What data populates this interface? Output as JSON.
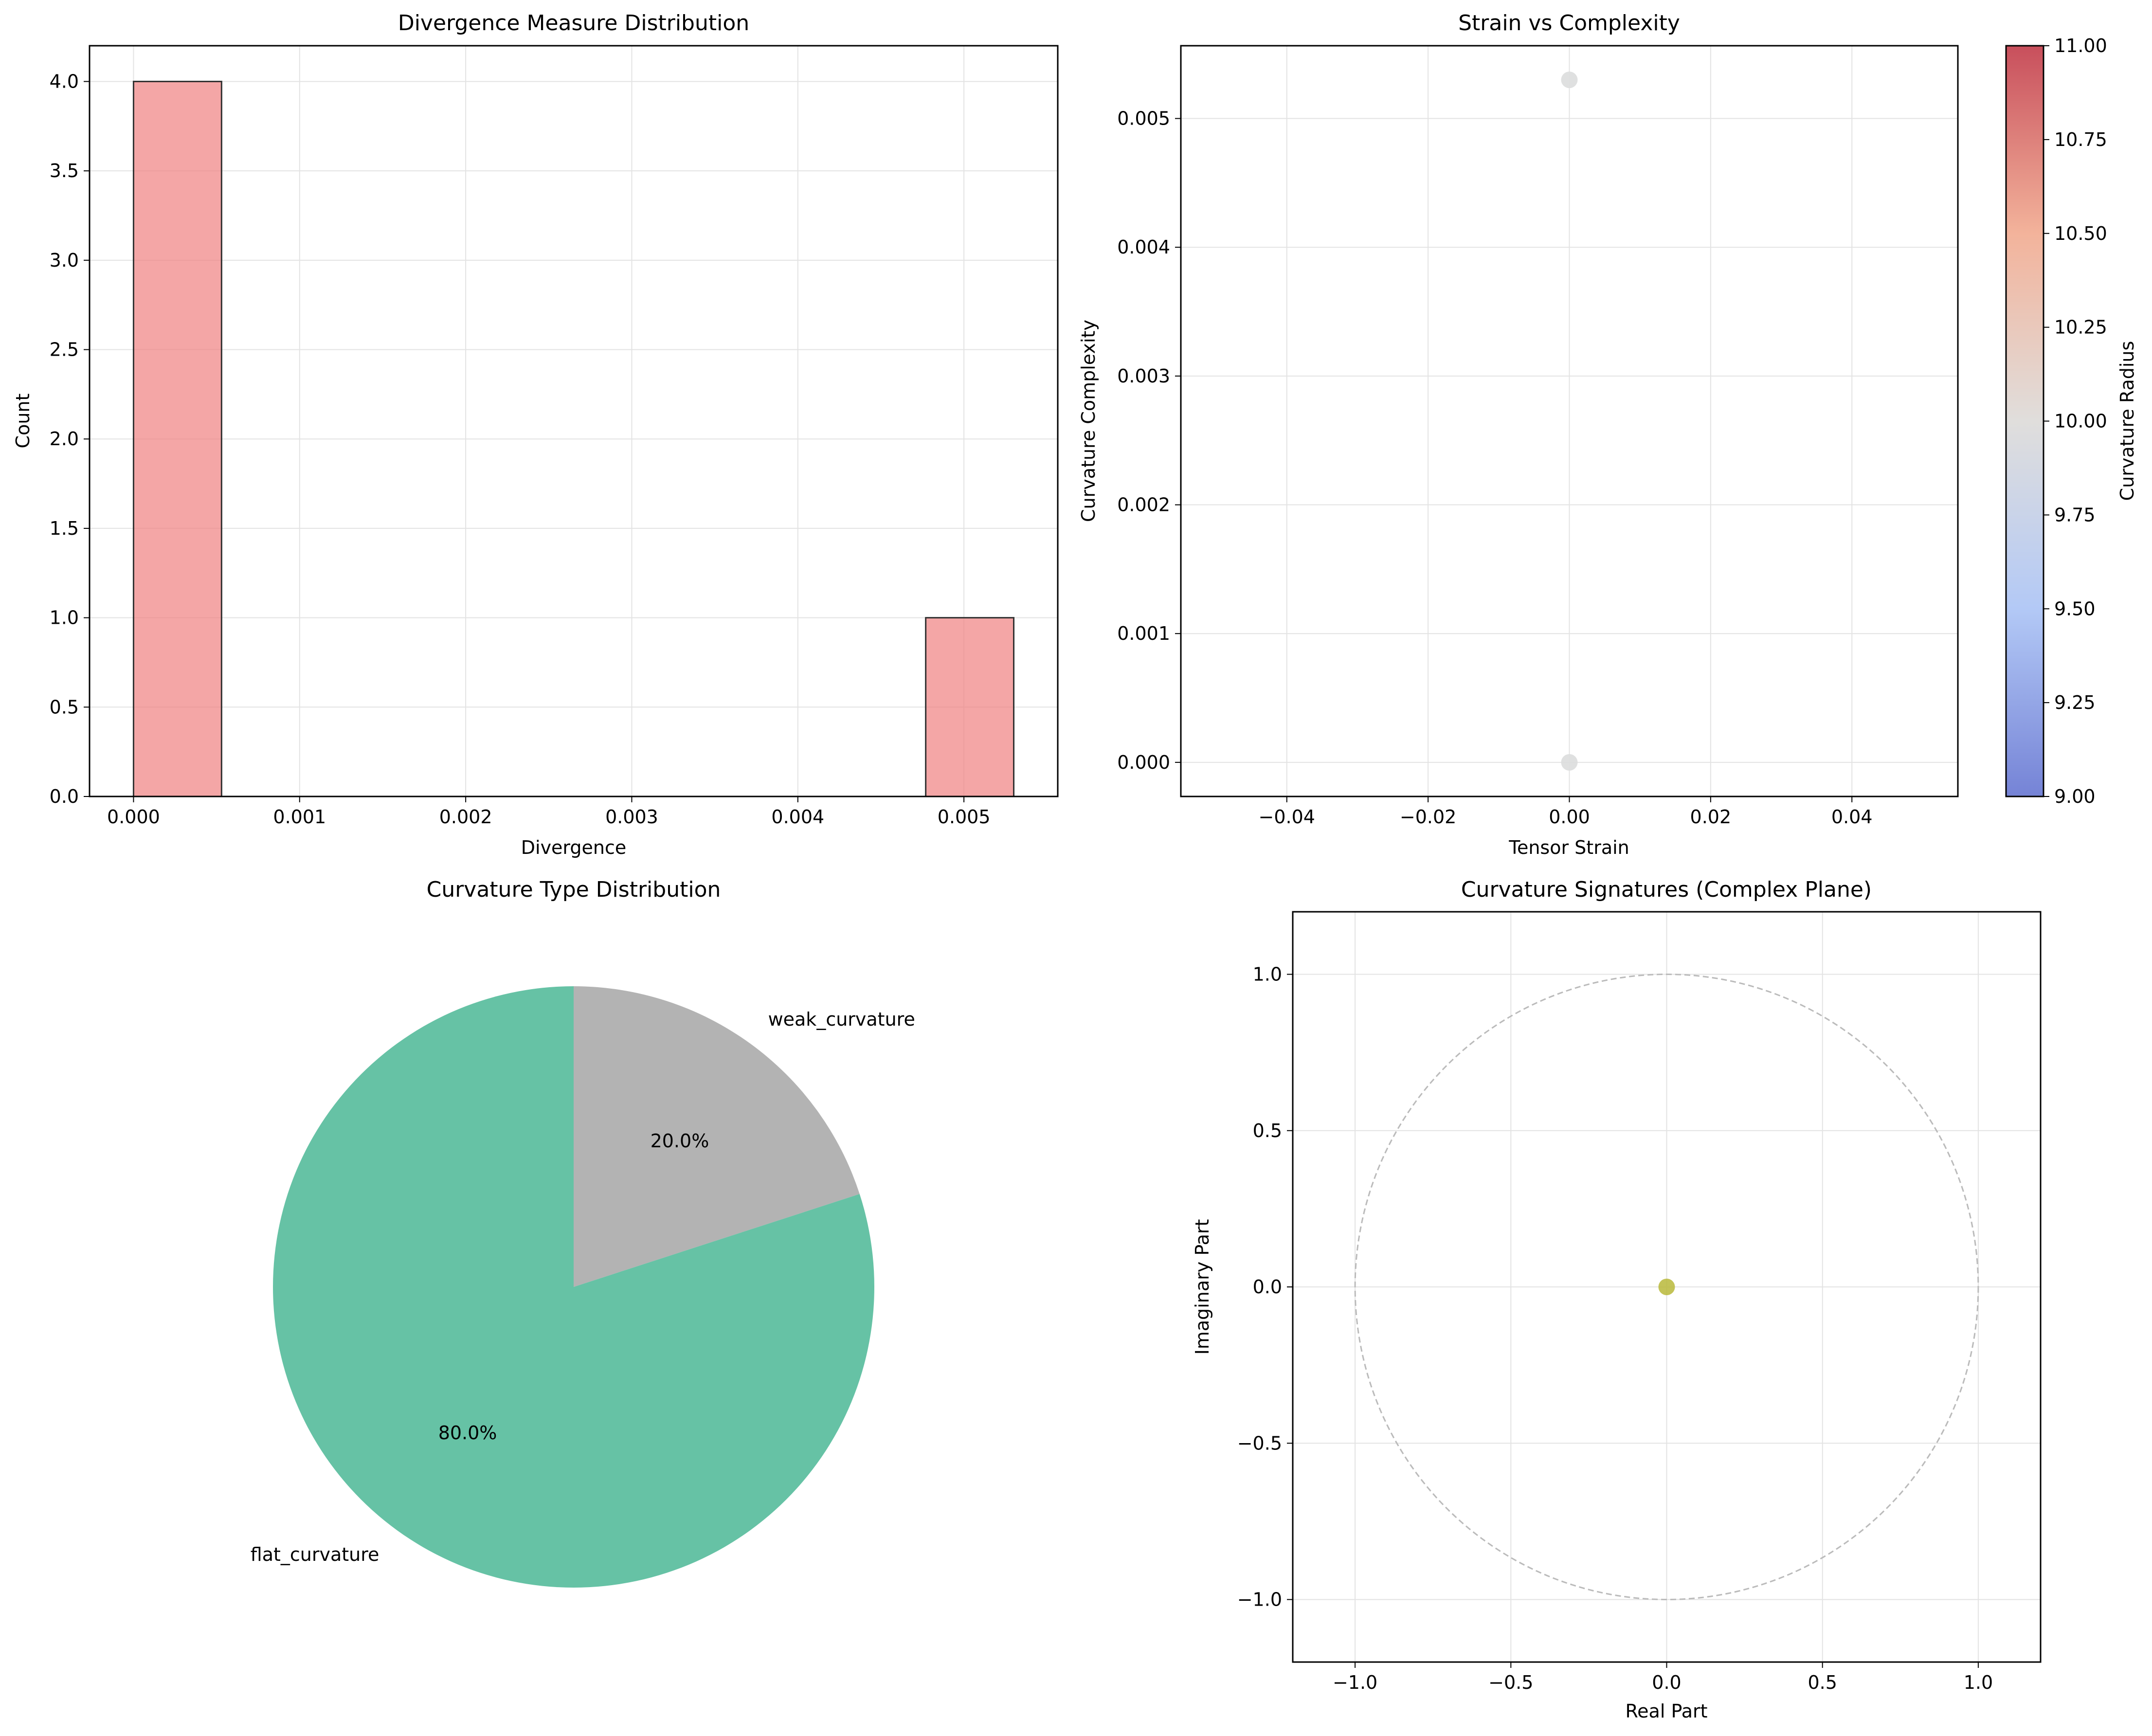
{
  "chart_data": [
    {
      "type": "bar",
      "title": "Divergence Measure Distribution",
      "xlabel": "Divergence",
      "ylabel": "Count",
      "xlim": [
        -0.000265,
        0.005565
      ],
      "ylim": [
        0,
        4.2
      ],
      "xticks": [
        0,
        0.001,
        0.002,
        0.003,
        0.004,
        0.005
      ],
      "xtick_labels": [
        "0.000",
        "0.001",
        "0.002",
        "0.003",
        "0.004",
        "0.005"
      ],
      "yticks": [
        0,
        0.5,
        1,
        1.5,
        2,
        2.5,
        3,
        3.5,
        4
      ],
      "ytick_labels": [
        "0.0",
        "0.5",
        "1.0",
        "1.5",
        "2.0",
        "2.5",
        "3.0",
        "3.5",
        "4.0"
      ],
      "bins": [
        {
          "start": 0.0,
          "end": 0.00053,
          "count": 4
        },
        {
          "start": 0.00053,
          "end": 0.00106,
          "count": 0
        },
        {
          "start": 0.00106,
          "end": 0.00159,
          "count": 0
        },
        {
          "start": 0.00159,
          "end": 0.00212,
          "count": 0
        },
        {
          "start": 0.00212,
          "end": 0.00265,
          "count": 0
        },
        {
          "start": 0.00265,
          "end": 0.00318,
          "count": 0
        },
        {
          "start": 0.00318,
          "end": 0.00371,
          "count": 0
        },
        {
          "start": 0.00371,
          "end": 0.00424,
          "count": 0
        },
        {
          "start": 0.00424,
          "end": 0.00477,
          "count": 0
        },
        {
          "start": 0.00477,
          "end": 0.0053,
          "count": 1
        }
      ],
      "bar_color": "#f08080",
      "grid": true
    },
    {
      "type": "scatter",
      "title": "Strain vs Complexity",
      "xlabel": "Tensor Strain",
      "ylabel": "Curvature Complexity",
      "xlim": [
        -0.055,
        0.055
      ],
      "ylim": [
        -0.000265,
        0.005565
      ],
      "xticks": [
        -0.04,
        -0.02,
        0,
        0.02,
        0.04
      ],
      "xtick_labels": [
        "−0.04",
        "−0.02",
        "0.00",
        "0.02",
        "0.04"
      ],
      "yticks": [
        0,
        0.001,
        0.002,
        0.003,
        0.004,
        0.005
      ],
      "ytick_labels": [
        "0.000",
        "0.001",
        "0.002",
        "0.003",
        "0.004",
        "0.005"
      ],
      "points": [
        {
          "x": 0.0,
          "y": 0.0053,
          "c": 10.0
        },
        {
          "x": 0.0,
          "y": 0.0,
          "c": 10.0
        }
      ],
      "colorbar": {
        "label": "Curvature Radius",
        "range": [
          9,
          11
        ],
        "ticks": [
          9,
          9.25,
          9.5,
          9.75,
          10,
          10.25,
          10.5,
          10.75,
          11
        ],
        "tick_labels": [
          "9.00",
          "9.25",
          "9.50",
          "9.75",
          "10.00",
          "10.25",
          "10.50",
          "10.75",
          "11.00"
        ],
        "colormap": "coolwarm"
      },
      "grid": true
    },
    {
      "type": "pie",
      "title": "Curvature Type Distribution",
      "slices": [
        {
          "label": "weak_curvature",
          "value": 20.0,
          "pct_label": "20.0%",
          "color": "#b3b3b3"
        },
        {
          "label": "flat_curvature",
          "value": 80.0,
          "pct_label": "80.0%",
          "color": "#66c2a5"
        }
      ],
      "start_angle_deg": 90,
      "direction": "clockwise"
    },
    {
      "type": "scatter",
      "title": "Curvature Signatures (Complex Plane)",
      "xlabel": "Real Part",
      "ylabel": "Imaginary Part",
      "xlim": [
        -1.2,
        1.2
      ],
      "ylim": [
        -1.2,
        1.2
      ],
      "xticks": [
        -1,
        -0.5,
        0,
        0.5,
        1
      ],
      "xtick_labels": [
        "−1.0",
        "−0.5",
        "0.0",
        "0.5",
        "1.0"
      ],
      "yticks": [
        -1,
        -0.5,
        0,
        0.5,
        1
      ],
      "ytick_labels": [
        "−1.0",
        "−0.5",
        "0.0",
        "0.5",
        "1.0"
      ],
      "points": [
        {
          "x": 0.0,
          "y": 0.0,
          "color": "#b8b83a"
        }
      ],
      "reference_circle": {
        "radius": 1.0,
        "style": "dashed",
        "color": "#bbbbbb"
      },
      "grid": true
    }
  ]
}
